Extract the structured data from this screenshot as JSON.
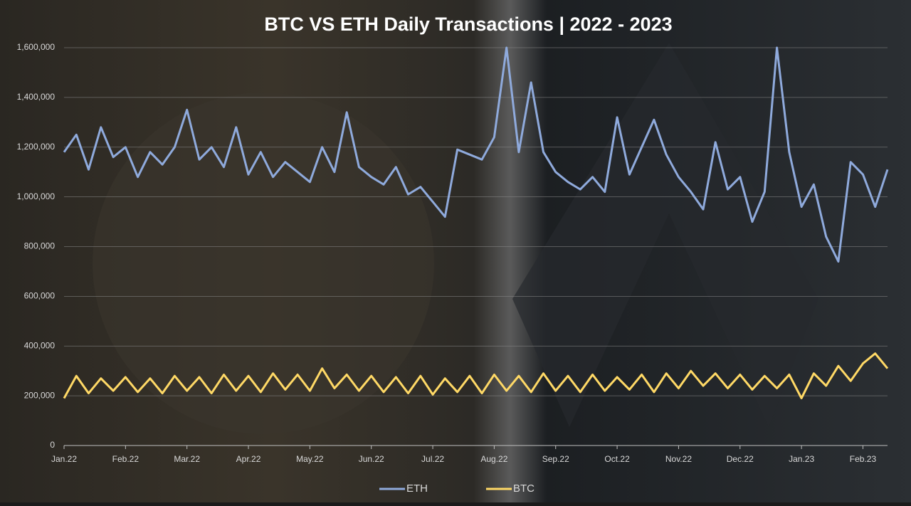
{
  "chart_data": {
    "type": "line",
    "title": "BTC VS ETH Daily Transactions | 2022 - 2023",
    "categories": [
      "Jan.22",
      null,
      null,
      null,
      null,
      "Feb.22",
      null,
      null,
      null,
      null,
      "Mar.22",
      null,
      null,
      null,
      null,
      "Apr.22",
      null,
      null,
      null,
      null,
      "May.22",
      null,
      null,
      null,
      null,
      "Jun.22",
      null,
      null,
      null,
      null,
      "Jul.22",
      null,
      null,
      null,
      null,
      "Aug.22",
      null,
      null,
      null,
      null,
      "Sep.22",
      null,
      null,
      null,
      null,
      "Oct.22",
      null,
      null,
      null,
      null,
      "Nov.22",
      null,
      null,
      null,
      null,
      "Dec.22",
      null,
      null,
      null,
      null,
      "Jan.23",
      null,
      null,
      null,
      null,
      "Feb.23",
      null,
      null
    ],
    "series": [
      {
        "name": "ETH",
        "color": "#8faadc",
        "values": [
          1180000,
          1250000,
          1110000,
          1280000,
          1160000,
          1200000,
          1080000,
          1180000,
          1130000,
          1200000,
          1350000,
          1150000,
          1200000,
          1120000,
          1280000,
          1090000,
          1180000,
          1080000,
          1140000,
          1100000,
          1060000,
          1200000,
          1100000,
          1340000,
          1120000,
          1080000,
          1050000,
          1120000,
          1010000,
          1040000,
          980000,
          920000,
          1190000,
          1170000,
          1150000,
          1240000,
          1600000,
          1180000,
          1460000,
          1180000,
          1100000,
          1060000,
          1030000,
          1080000,
          1020000,
          1320000,
          1090000,
          1200000,
          1310000,
          1170000,
          1080000,
          1020000,
          950000,
          1220000,
          1030000,
          1080000,
          900000,
          1020000,
          1600000,
          1180000,
          960000,
          1050000,
          840000,
          740000,
          1140000,
          1090000,
          960000,
          1110000
        ]
      },
      {
        "name": "BTC",
        "color": "#ffd966",
        "values": [
          190000,
          280000,
          210000,
          270000,
          220000,
          275000,
          215000,
          270000,
          210000,
          280000,
          220000,
          275000,
          210000,
          285000,
          220000,
          280000,
          215000,
          290000,
          225000,
          285000,
          220000,
          310000,
          230000,
          285000,
          220000,
          280000,
          215000,
          275000,
          210000,
          280000,
          205000,
          270000,
          215000,
          280000,
          210000,
          285000,
          220000,
          280000,
          215000,
          290000,
          220000,
          280000,
          215000,
          285000,
          220000,
          275000,
          225000,
          285000,
          215000,
          290000,
          230000,
          300000,
          240000,
          290000,
          230000,
          285000,
          225000,
          280000,
          230000,
          285000,
          190000,
          290000,
          240000,
          320000,
          260000,
          330000,
          370000,
          310000
        ]
      }
    ],
    "ylim": [
      0,
      1600000
    ],
    "yticks": [
      0,
      {
        "value": 200000,
        "label": "200,000"
      },
      {
        "value": 400000,
        "label": "400,000"
      },
      {
        "value": 600000,
        "label": "600,000"
      },
      {
        "value": 800000,
        "label": "800,000"
      },
      {
        "value": 1000000,
        "label": "1,000,000"
      },
      {
        "value": 1200000,
        "label": "1,200,000"
      },
      {
        "value": 1400000,
        "label": "1,400,000"
      },
      {
        "value": 1600000,
        "label": "1,600,000"
      }
    ],
    "grid": true
  }
}
